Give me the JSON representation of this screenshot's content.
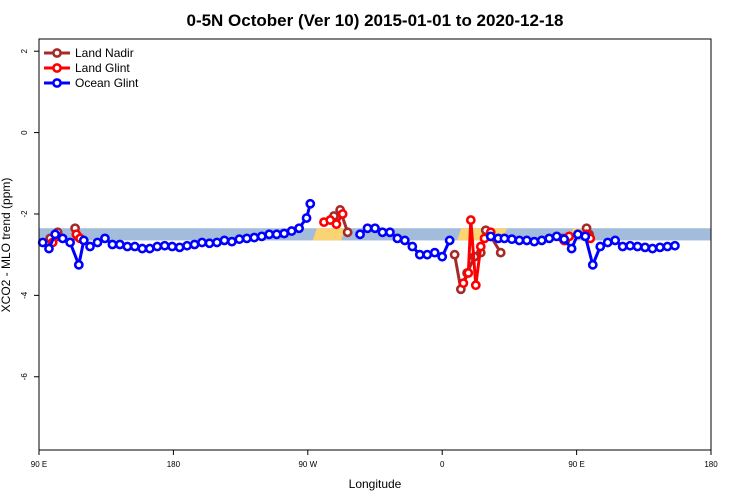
{
  "chart_data": {
    "type": "line",
    "title": "0-5N October (Ver 10)   2015-01-01 to 2020-12-18",
    "xlabel": "Longitude",
    "ylabel": "XCO2 - MLO trend (ppm)",
    "xlim": [
      -90,
      180
    ],
    "ylim": [
      -7.8,
      2.3
    ],
    "x_ticks": [
      {
        "value": -90,
        "label": "90 E"
      },
      {
        "value": -36,
        "label": "180"
      },
      {
        "value": 18,
        "label": "90 W"
      },
      {
        "value": 72,
        "label": "0"
      },
      {
        "value": 126,
        "label": "90 E"
      },
      {
        "value": 180,
        "label": "180"
      }
    ],
    "y_ticks": [
      {
        "value": 2,
        "label": "2"
      },
      {
        "value": 0,
        "label": "0"
      },
      {
        "value": -2,
        "label": "-2"
      },
      {
        "value": -4,
        "label": "-4"
      },
      {
        "value": -6,
        "label": "-6"
      }
    ],
    "legend_position": "top-left",
    "grid": false,
    "band": {
      "y_low": -2.65,
      "y_high": -2.35,
      "colors": {
        "ocean": "#a3bcdc",
        "land": "#fad472"
      },
      "land_segments": [
        [
          20,
          33
        ],
        [
          78,
          98
        ],
        [
          123,
          128
        ]
      ]
    },
    "series": [
      {
        "name": "Land Nadir",
        "color": "#a52a2a",
        "segments": [
          [
            [
              -85.5,
              -2.6
            ],
            [
              -82.5,
              -2.45
            ]
          ],
          [
            [
              -75.5,
              -2.35
            ],
            [
              -74.5,
              -2.55
            ]
          ],
          [
            [
              28.5,
              -2.05
            ],
            [
              31,
              -1.9
            ],
            [
              34,
              -2.45
            ]
          ],
          [
            [
              77,
              -3.0
            ],
            [
              79.5,
              -3.85
            ],
            [
              82,
              -3.45
            ],
            [
              85,
              -3.05
            ],
            [
              87.5,
              -2.95
            ],
            [
              89.5,
              -2.4
            ],
            [
              91.5,
              -2.55
            ],
            [
              95.5,
              -2.95
            ]
          ],
          [
            [
              120.5,
              -2.6
            ],
            [
              121.5,
              -2.65
            ]
          ],
          [
            [
              130,
              -2.35
            ],
            [
              131,
              -2.5
            ]
          ]
        ]
      },
      {
        "name": "Land Glint",
        "color": "#ff0000",
        "segments": [
          [
            [
              -84.5,
              -2.7
            ],
            [
              -82.5,
              -2.55
            ]
          ],
          [
            [
              -75,
              -2.5
            ],
            [
              -73.5,
              -2.6
            ]
          ],
          [
            [
              24.5,
              -2.2
            ],
            [
              27,
              -2.15
            ],
            [
              29.5,
              -2.25
            ],
            [
              32,
              -2.0
            ]
          ],
          [
            [
              80.5,
              -3.7
            ],
            [
              82.5,
              -3.45
            ],
            [
              83.5,
              -2.15
            ],
            [
              85.5,
              -3.75
            ],
            [
              87.5,
              -2.8
            ],
            [
              89,
              -2.6
            ],
            [
              91.5,
              -2.45
            ]
          ],
          [
            [
              121,
              -2.65
            ],
            [
              123,
              -2.55
            ]
          ],
          [
            [
              130,
              -2.5
            ],
            [
              131.5,
              -2.6
            ]
          ]
        ]
      },
      {
        "name": "Ocean Glint",
        "color": "#0000ff",
        "segments": [
          [
            [
              -88.5,
              -2.7
            ],
            [
              -86,
              -2.85
            ],
            [
              -83.5,
              -2.5
            ],
            [
              -80.5,
              -2.6
            ],
            [
              -77.5,
              -2.7
            ],
            [
              -74,
              -3.25
            ],
            [
              -72,
              -2.65
            ],
            [
              -69.5,
              -2.8
            ],
            [
              -66.5,
              -2.7
            ],
            [
              -63.5,
              -2.6
            ],
            [
              -60.5,
              -2.75
            ],
            [
              -57.5,
              -2.75
            ],
            [
              -54.5,
              -2.8
            ],
            [
              -51.5,
              -2.8
            ],
            [
              -48.5,
              -2.85
            ],
            [
              -45.5,
              -2.85
            ],
            [
              -42.5,
              -2.8
            ],
            [
              -39.5,
              -2.78
            ],
            [
              -36.5,
              -2.8
            ],
            [
              -33.5,
              -2.82
            ],
            [
              -30.5,
              -2.78
            ],
            [
              -27.5,
              -2.75
            ],
            [
              -24.5,
              -2.7
            ],
            [
              -21.5,
              -2.72
            ],
            [
              -18.5,
              -2.7
            ],
            [
              -15.5,
              -2.65
            ],
            [
              -12.5,
              -2.68
            ],
            [
              -9.5,
              -2.62
            ],
            [
              -6.5,
              -2.6
            ],
            [
              -3.5,
              -2.58
            ],
            [
              -0.5,
              -2.55
            ],
            [
              2.5,
              -2.5
            ],
            [
              5.5,
              -2.5
            ],
            [
              8.5,
              -2.48
            ],
            [
              11.5,
              -2.42
            ],
            [
              14.5,
              -2.35
            ],
            [
              17.5,
              -2.1
            ],
            [
              19,
              -1.75
            ]
          ],
          [
            [
              39,
              -2.5
            ],
            [
              42,
              -2.35
            ],
            [
              45,
              -2.35
            ],
            [
              48,
              -2.45
            ],
            [
              51,
              -2.45
            ],
            [
              54,
              -2.6
            ],
            [
              57,
              -2.65
            ],
            [
              60,
              -2.8
            ],
            [
              63,
              -3.0
            ],
            [
              66,
              -3.0
            ],
            [
              69,
              -2.95
            ],
            [
              72,
              -3.05
            ],
            [
              75,
              -2.65
            ]
          ],
          [
            [
              91.5,
              -2.55
            ],
            [
              94.5,
              -2.6
            ],
            [
              97,
              -2.6
            ],
            [
              100,
              -2.62
            ],
            [
              103,
              -2.65
            ],
            [
              106,
              -2.65
            ],
            [
              109,
              -2.68
            ],
            [
              112,
              -2.65
            ],
            [
              115,
              -2.6
            ],
            [
              118,
              -2.55
            ],
            [
              121,
              -2.62
            ],
            [
              124,
              -2.85
            ],
            [
              126.5,
              -2.5
            ],
            [
              129.5,
              -2.55
            ],
            [
              132.5,
              -3.25
            ],
            [
              135.5,
              -2.8
            ],
            [
              138.5,
              -2.7
            ],
            [
              141.5,
              -2.65
            ],
            [
              144.5,
              -2.8
            ],
            [
              147.5,
              -2.78
            ],
            [
              150.5,
              -2.8
            ],
            [
              153.5,
              -2.82
            ],
            [
              156.5,
              -2.85
            ],
            [
              159.5,
              -2.82
            ],
            [
              162.5,
              -2.8
            ],
            [
              165.5,
              -2.78
            ]
          ]
        ]
      }
    ]
  }
}
